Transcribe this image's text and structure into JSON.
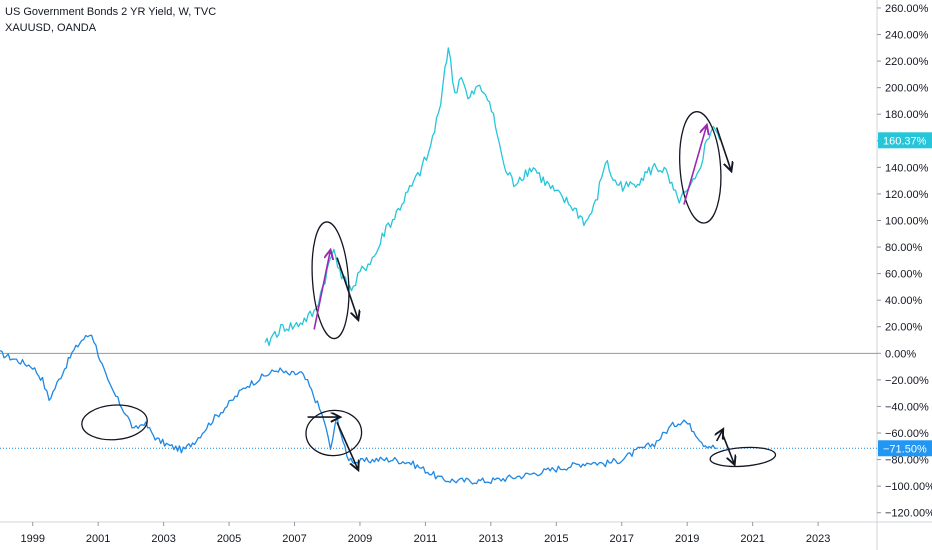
{
  "legend": {
    "line1": "US Government Bonds 2 YR Yield, W, TVC",
    "line2": "XAUUSD, OANDA"
  },
  "colors": {
    "gold": "#26c6da",
    "bond": "#1e88e5",
    "marker_gold": "#26c6da",
    "marker_bond": "#2196f3",
    "zero_line": "#9598a1",
    "ink": "#131722",
    "arrow_purple": "#9c27b0"
  },
  "chart_data": {
    "type": "line",
    "title": "",
    "x": {
      "ticks": [
        "1999",
        "2001",
        "2003",
        "2005",
        "2007",
        "2009",
        "2011",
        "2013",
        "2015",
        "2017",
        "2019",
        "2021",
        "2023"
      ],
      "range": [
        1998.0,
        2024.8
      ]
    },
    "y": {
      "unit": "%",
      "ticks": [
        "260.00%",
        "240.00%",
        "220.00%",
        "200.00%",
        "180.00%",
        "160.00%",
        "140.00%",
        "120.00%",
        "100.00%",
        "80.00%",
        "60.00%",
        "40.00%",
        "20.00%",
        "0.00%",
        "−20.00%",
        "−40.00%",
        "−60.00%",
        "−80.00%",
        "−100.00%",
        "−120.00%"
      ],
      "range": [
        -127,
        266
      ]
    },
    "price_markers": [
      {
        "series": "XAUUSD, OANDA",
        "label": "160.37%",
        "value": 160.37
      },
      {
        "series": "US Government Bonds 2 YR Yield, W, TVC",
        "label": "−71.50%",
        "value": -71.5
      }
    ],
    "series": [
      {
        "name": "US Government Bonds 2 YR Yield, W, TVC",
        "points": [
          [
            1998.0,
            0
          ],
          [
            1998.5,
            -5
          ],
          [
            1999.0,
            -10
          ],
          [
            1999.3,
            -20
          ],
          [
            1999.5,
            -35
          ],
          [
            1999.8,
            -20
          ],
          [
            2000.2,
            0
          ],
          [
            2000.5,
            10
          ],
          [
            2000.8,
            15
          ],
          [
            2001.0,
            0
          ],
          [
            2001.3,
            -22
          ],
          [
            2001.6,
            -35
          ],
          [
            2001.9,
            -48
          ],
          [
            2002.1,
            -58
          ],
          [
            2002.4,
            -52
          ],
          [
            2002.8,
            -65
          ],
          [
            2003.2,
            -70
          ],
          [
            2003.6,
            -73
          ],
          [
            2004.0,
            -65
          ],
          [
            2004.5,
            -50
          ],
          [
            2005.0,
            -38
          ],
          [
            2005.5,
            -25
          ],
          [
            2006.0,
            -18
          ],
          [
            2006.5,
            -12
          ],
          [
            2006.8,
            -16
          ],
          [
            2007.2,
            -15
          ],
          [
            2007.4,
            -22
          ],
          [
            2007.7,
            -38
          ],
          [
            2007.9,
            -50
          ],
          [
            2008.1,
            -72
          ],
          [
            2008.3,
            -48
          ],
          [
            2008.6,
            -78
          ],
          [
            2008.9,
            -82
          ],
          [
            2009.5,
            -80
          ],
          [
            2010.0,
            -80
          ],
          [
            2010.5,
            -82
          ],
          [
            2011.0,
            -88
          ],
          [
            2011.5,
            -95
          ],
          [
            2012.0,
            -96
          ],
          [
            2013.0,
            -96
          ],
          [
            2014.0,
            -92
          ],
          [
            2015.0,
            -87
          ],
          [
            2016.0,
            -82
          ],
          [
            2016.5,
            -83
          ],
          [
            2017.0,
            -80
          ],
          [
            2017.5,
            -73
          ],
          [
            2018.0,
            -68
          ],
          [
            2018.5,
            -55
          ],
          [
            2018.9,
            -50
          ],
          [
            2019.2,
            -58
          ],
          [
            2019.5,
            -68
          ],
          [
            2019.9,
            -71.5
          ]
        ]
      },
      {
        "name": "XAUUSD, OANDA",
        "points": [
          [
            2006.1,
            5
          ],
          [
            2006.4,
            15
          ],
          [
            2006.7,
            20
          ],
          [
            2007.0,
            20
          ],
          [
            2007.3,
            25
          ],
          [
            2007.6,
            30
          ],
          [
            2007.8,
            45
          ],
          [
            2008.0,
            62
          ],
          [
            2008.2,
            78
          ],
          [
            2008.5,
            55
          ],
          [
            2008.8,
            48
          ],
          [
            2009.0,
            60
          ],
          [
            2009.5,
            75
          ],
          [
            2009.8,
            95
          ],
          [
            2010.0,
            100
          ],
          [
            2010.4,
            118
          ],
          [
            2010.7,
            130
          ],
          [
            2010.9,
            140
          ],
          [
            2011.1,
            150
          ],
          [
            2011.4,
            180
          ],
          [
            2011.6,
            215
          ],
          [
            2011.7,
            230
          ],
          [
            2011.9,
            195
          ],
          [
            2012.1,
            210
          ],
          [
            2012.3,
            190
          ],
          [
            2012.6,
            200
          ],
          [
            2012.9,
            195
          ],
          [
            2013.2,
            165
          ],
          [
            2013.4,
            140
          ],
          [
            2013.7,
            128
          ],
          [
            2014.0,
            135
          ],
          [
            2014.3,
            140
          ],
          [
            2014.6,
            130
          ],
          [
            2015.0,
            120
          ],
          [
            2015.5,
            110
          ],
          [
            2015.9,
            98
          ],
          [
            2016.2,
            112
          ],
          [
            2016.5,
            145
          ],
          [
            2016.8,
            128
          ],
          [
            2017.2,
            125
          ],
          [
            2017.6,
            132
          ],
          [
            2018.0,
            140
          ],
          [
            2018.3,
            138
          ],
          [
            2018.7,
            115
          ],
          [
            2019.0,
            120
          ],
          [
            2019.3,
            132
          ],
          [
            2019.6,
            160
          ],
          [
            2019.8,
            172
          ],
          [
            2020.0,
            160.37
          ]
        ]
      }
    ],
    "annotations": [
      {
        "type": "ellipse",
        "cx": 2001.5,
        "cy": -52,
        "rx": 1.0,
        "ry": 13
      },
      {
        "type": "ellipse",
        "cx": 2008.1,
        "cy": 55,
        "rx": 0.55,
        "ry": 44
      },
      {
        "type": "ellipse",
        "cx": 2008.2,
        "cy": -60,
        "rx": 0.85,
        "ry": 17
      },
      {
        "type": "ellipse",
        "cx": 2019.4,
        "cy": 140,
        "rx": 0.62,
        "ry": 42
      },
      {
        "type": "ellipse",
        "cx": 2020.7,
        "cy": -78,
        "rx": 1.0,
        "ry": 7
      },
      {
        "type": "arrow",
        "color": "arrow_purple",
        "from": [
          2007.6,
          18
        ],
        "to": [
          2008.1,
          78
        ]
      },
      {
        "type": "arrow",
        "color": "ink",
        "from": [
          2008.3,
          72
        ],
        "to": [
          2008.95,
          25
        ]
      },
      {
        "type": "arrow",
        "color": "arrow_purple",
        "from": [
          2018.9,
          112
        ],
        "to": [
          2019.6,
          172
        ]
      },
      {
        "type": "arrow",
        "color": "ink",
        "from": [
          2019.9,
          170
        ],
        "to": [
          2020.35,
          137
        ]
      },
      {
        "type": "arrow",
        "color": "ink",
        "from": [
          2007.4,
          -48
        ],
        "to": [
          2008.4,
          -48
        ]
      },
      {
        "type": "arrow",
        "color": "ink",
        "from": [
          2008.3,
          -52
        ],
        "to": [
          2008.95,
          -88
        ]
      },
      {
        "type": "arrow",
        "color": "ink",
        "from": [
          2019.9,
          -66
        ],
        "to": [
          2020.1,
          -57
        ]
      },
      {
        "type": "arrow",
        "color": "ink",
        "from": [
          2020.1,
          -62
        ],
        "to": [
          2020.45,
          -84
        ]
      }
    ]
  }
}
